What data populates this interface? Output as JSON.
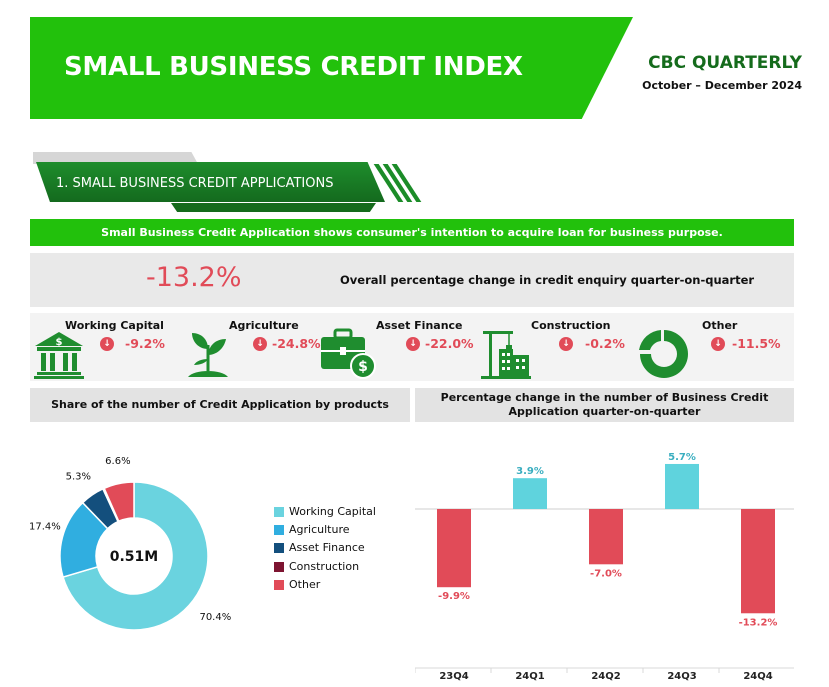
{
  "header": {
    "title": "SMALL BUSINESS CREDIT INDEX",
    "brand": "CBC QUARTERLY",
    "period": "October – December 2024"
  },
  "section": {
    "title": "1. SMALL BUSINESS CREDIT APPLICATIONS",
    "subtitle": "Small Business Credit Application shows consumer's intention to acquire loan for business purpose."
  },
  "overall": {
    "value": "-13.2%",
    "description": "Overall percentage change in credit enquiry quarter-on-quarter"
  },
  "categories": [
    {
      "name": "Working Capital",
      "pct": "-9.2%",
      "icon": "bank-icon"
    },
    {
      "name": "Agriculture",
      "pct": "-24.8%",
      "icon": "plant-icon"
    },
    {
      "name": "Asset Finance",
      "pct": "-22.0%",
      "icon": "briefcase-dollar-icon"
    },
    {
      "name": "Construction",
      "pct": "-0.2%",
      "icon": "construction-icon"
    },
    {
      "name": "Other",
      "pct": "-11.5%",
      "icon": "donut-icon"
    }
  ],
  "colors": {
    "green": "#22c10c",
    "dark_green": "#156b1c",
    "negative": "#e14b58",
    "positive": "#5fd3dd"
  },
  "chart_data": [
    {
      "type": "pie",
      "title": "Share of the number of Credit Application by products",
      "center_label": "0.51M",
      "categories": [
        "Working Capital",
        "Agriculture",
        "Asset Finance",
        "Construction",
        "Other"
      ],
      "values": [
        70.4,
        17.4,
        5.3,
        0.3,
        6.6
      ],
      "labels": [
        "70.4%",
        "17.4%",
        "5.3%",
        "",
        "6.6%"
      ],
      "colors": [
        "#6ad3df",
        "#30aee0",
        "#134f7d",
        "#7d1431",
        "#e14b58"
      ],
      "legend": "right"
    },
    {
      "type": "bar",
      "title": "Percentage change in the number of Business Credit Application quarter-on-quarter",
      "categories": [
        "23Q4",
        "24Q1",
        "24Q2",
        "24Q3",
        "24Q4"
      ],
      "values": [
        -9.9,
        3.9,
        -7.0,
        5.7,
        -13.2
      ],
      "labels": [
        "-9.9%",
        "3.9%",
        "-7.0%",
        "5.7%",
        "-13.2%"
      ],
      "ylim": [
        -13.2,
        5.7
      ],
      "grid": false
    }
  ]
}
